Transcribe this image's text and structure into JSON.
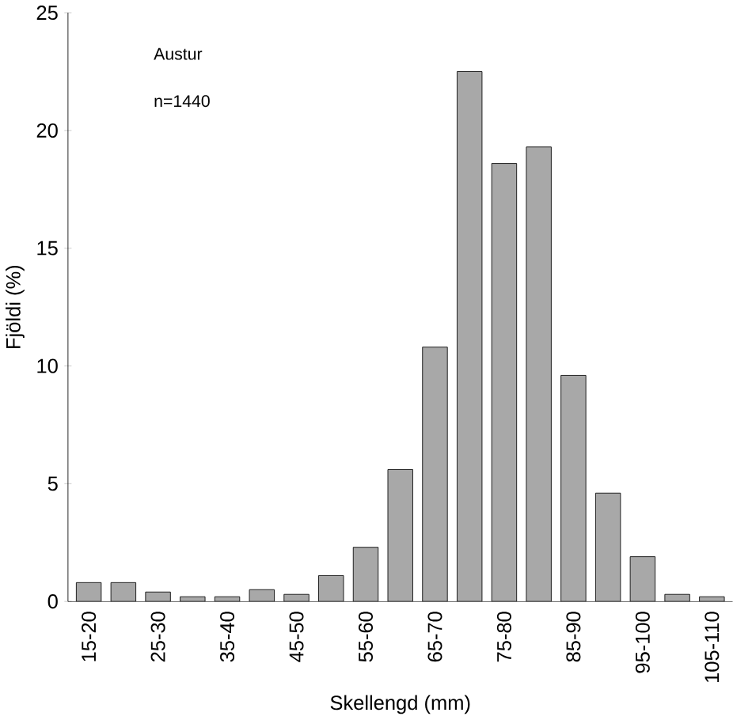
{
  "chart_data": {
    "type": "bar",
    "xlabel": "Skellengd (mm)",
    "ylabel": "Fjöldi (%)",
    "annotations": [
      "Austur",
      "n=1440"
    ],
    "categories": [
      "15-20",
      null,
      "25-30",
      null,
      "35-40",
      null,
      "45-50",
      null,
      "55-60",
      null,
      "65-70",
      null,
      "75-80",
      null,
      "85-90",
      null,
      "95-100",
      null,
      "105-110"
    ],
    "values": [
      0.8,
      0.8,
      0.4,
      0.2,
      0.2,
      0.5,
      0.3,
      1.1,
      2.3,
      5.6,
      10.8,
      22.5,
      18.6,
      19.3,
      9.6,
      4.6,
      1.9,
      0.3,
      0.2
    ],
    "color": "#a8a8a8",
    "ylim": [
      0,
      25
    ],
    "yticks": [
      0,
      5,
      10,
      15,
      20,
      25
    ]
  }
}
